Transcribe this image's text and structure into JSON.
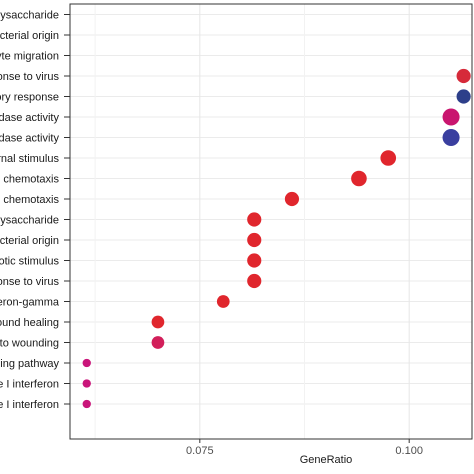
{
  "chart_data": {
    "type": "scatter",
    "title": "",
    "xlabel": "GeneRatio",
    "ylabel": "",
    "x_ticks": [
      0.075,
      0.1
    ],
    "x_tick_labels": [
      "0.075",
      "0.100"
    ],
    "xlim": [
      0.0595,
      0.1075
    ],
    "grid": true,
    "categories": [
      "llysaccharide",
      "acterial origin",
      "yte migration",
      "ponse to virus",
      "ory response",
      "idase activity",
      "idase activity",
      "rnal stimulus",
      "l chemotaxis",
      "e chemotaxis",
      "llysaccharide",
      "acterial origin",
      "iotic stimulus",
      "ponse to virus",
      "eron-gamma",
      "ound healing",
      "to wounding",
      "lling pathway",
      "pe I interferon",
      "e I interferon"
    ],
    "points": [
      {
        "category_index": 3,
        "x": 0.1065,
        "size": 3.5,
        "color": "#d62a3a"
      },
      {
        "category_index": 4,
        "x": 0.1065,
        "size": 3.5,
        "color": "#2d3f8a"
      },
      {
        "category_index": 5,
        "x": 0.105,
        "size": 4.5,
        "color": "#c9156f"
      },
      {
        "category_index": 6,
        "x": 0.105,
        "size": 4.5,
        "color": "#3a3f9f"
      },
      {
        "category_index": 7,
        "x": 0.0975,
        "size": 4,
        "color": "#e0262d"
      },
      {
        "category_index": 8,
        "x": 0.094,
        "size": 4,
        "color": "#e0262d"
      },
      {
        "category_index": 9,
        "x": 0.086,
        "size": 3.5,
        "color": "#e0262d"
      },
      {
        "category_index": 10,
        "x": 0.0815,
        "size": 3.5,
        "color": "#e0262d"
      },
      {
        "category_index": 11,
        "x": 0.0815,
        "size": 3.5,
        "color": "#e0262d"
      },
      {
        "category_index": 12,
        "x": 0.0815,
        "size": 3.5,
        "color": "#e0262d"
      },
      {
        "category_index": 13,
        "x": 0.0815,
        "size": 3.5,
        "color": "#e0262d"
      },
      {
        "category_index": 14,
        "x": 0.0778,
        "size": 3,
        "color": "#e0262d"
      },
      {
        "category_index": 15,
        "x": 0.07,
        "size": 3,
        "color": "#e0262d"
      },
      {
        "category_index": 16,
        "x": 0.07,
        "size": 3,
        "color": "#d21f5a"
      },
      {
        "category_index": 17,
        "x": 0.0615,
        "size": 1.5,
        "color": "#c9157a"
      },
      {
        "category_index": 18,
        "x": 0.0615,
        "size": 1.5,
        "color": "#c9157a"
      },
      {
        "category_index": 19,
        "x": 0.0615,
        "size": 1.5,
        "color": "#c9157a"
      }
    ]
  }
}
